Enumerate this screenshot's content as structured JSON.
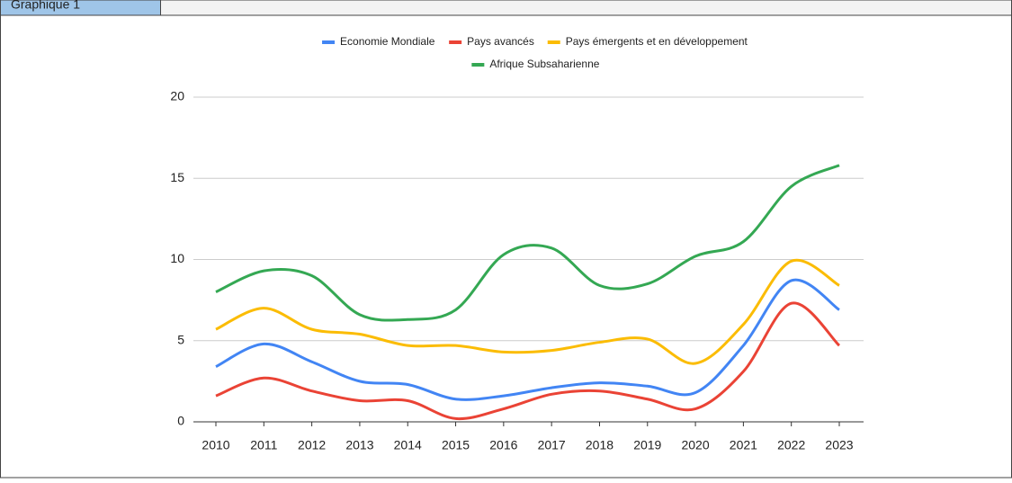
{
  "header": {
    "label": "Graphique 1"
  },
  "chart_data": {
    "type": "line",
    "categories": [
      "2010",
      "2011",
      "2012",
      "2013",
      "2014",
      "2015",
      "2016",
      "2017",
      "2018",
      "2019",
      "2020",
      "2021",
      "2022",
      "2023"
    ],
    "series": [
      {
        "name": "Economie Mondiale",
        "color": "#4285f4",
        "values": [
          3.4,
          4.8,
          3.7,
          2.5,
          2.3,
          1.4,
          1.6,
          2.1,
          2.4,
          2.2,
          1.8,
          4.7,
          8.7,
          6.9
        ]
      },
      {
        "name": "Pays avancés",
        "color": "#ea4335",
        "values": [
          1.6,
          2.7,
          1.9,
          1.3,
          1.3,
          0.2,
          0.8,
          1.7,
          1.9,
          1.4,
          0.8,
          3.1,
          7.3,
          4.7
        ]
      },
      {
        "name": "Pays émergents et en développement",
        "color": "#fbbc04",
        "values": [
          5.7,
          7.0,
          5.7,
          5.4,
          4.7,
          4.7,
          4.3,
          4.4,
          4.9,
          5.1,
          3.6,
          6.0,
          9.9,
          8.4
        ]
      },
      {
        "name": "Afrique Subsaharienne",
        "color": "#34a853",
        "values": [
          8.0,
          9.3,
          9.0,
          6.6,
          6.3,
          6.9,
          10.3,
          10.7,
          8.4,
          8.5,
          10.2,
          11.1,
          14.5,
          15.8
        ]
      }
    ],
    "ylim": [
      0,
      20
    ],
    "yticks": [
      0,
      5,
      10,
      15,
      20
    ],
    "grid": true,
    "legend": "top"
  }
}
